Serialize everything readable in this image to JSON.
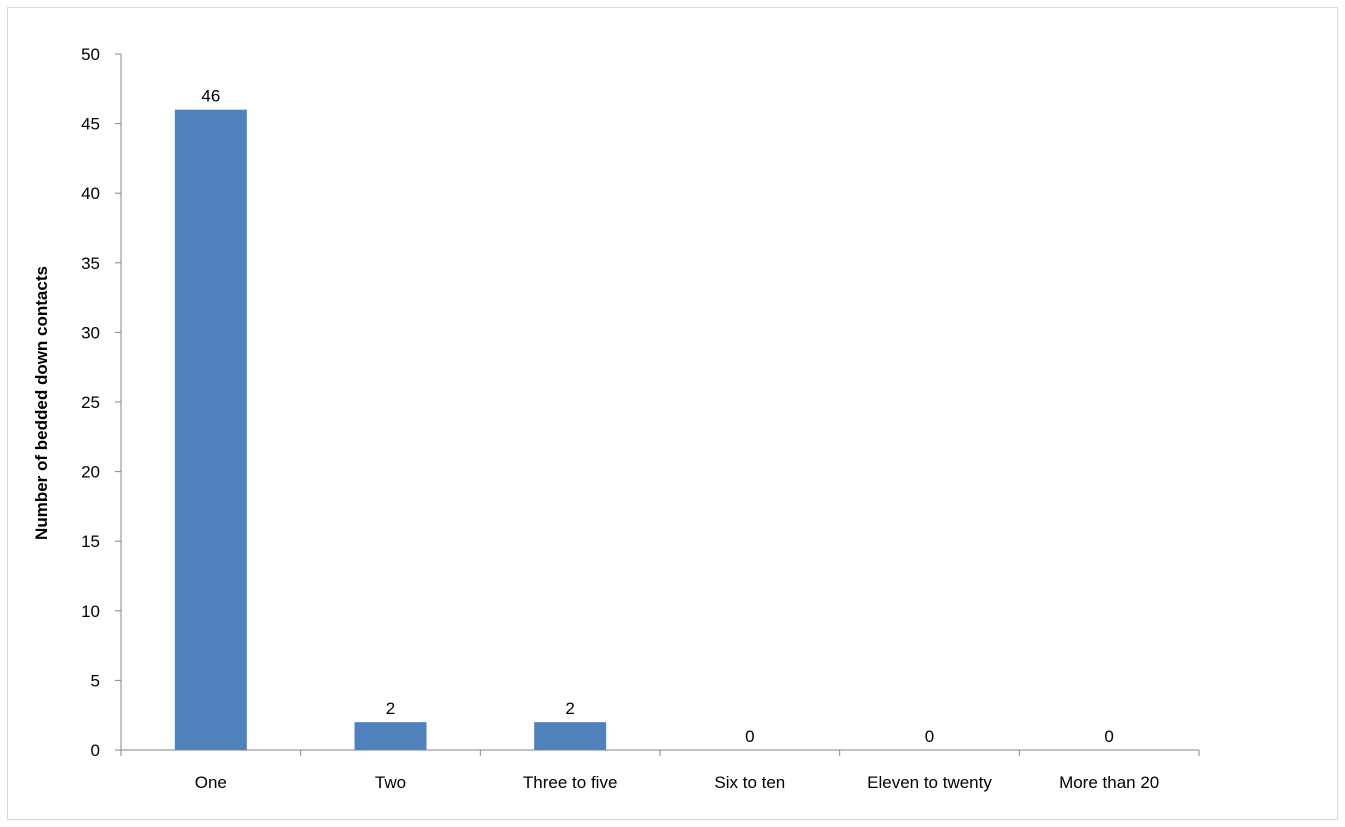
{
  "chart_data": {
    "type": "bar",
    "title": "",
    "xlabel": "",
    "ylabel": "Number of bedded down contacts",
    "categories": [
      "One",
      "Two",
      "Three to five",
      "Six to ten",
      "Eleven to twenty",
      "More than 20"
    ],
    "values": [
      46,
      2,
      2,
      0,
      0,
      0
    ],
    "data_labels": [
      "46",
      "2",
      "2",
      "0",
      "0",
      "0"
    ],
    "ylim": [
      0,
      50
    ],
    "yticks": [
      0,
      5,
      10,
      15,
      20,
      25,
      30,
      35,
      40,
      45,
      50
    ],
    "grid": false,
    "legend": "none",
    "colors": {
      "bar": "#4f81bd",
      "axis": "#868686",
      "border": "#d9d9d9"
    }
  }
}
